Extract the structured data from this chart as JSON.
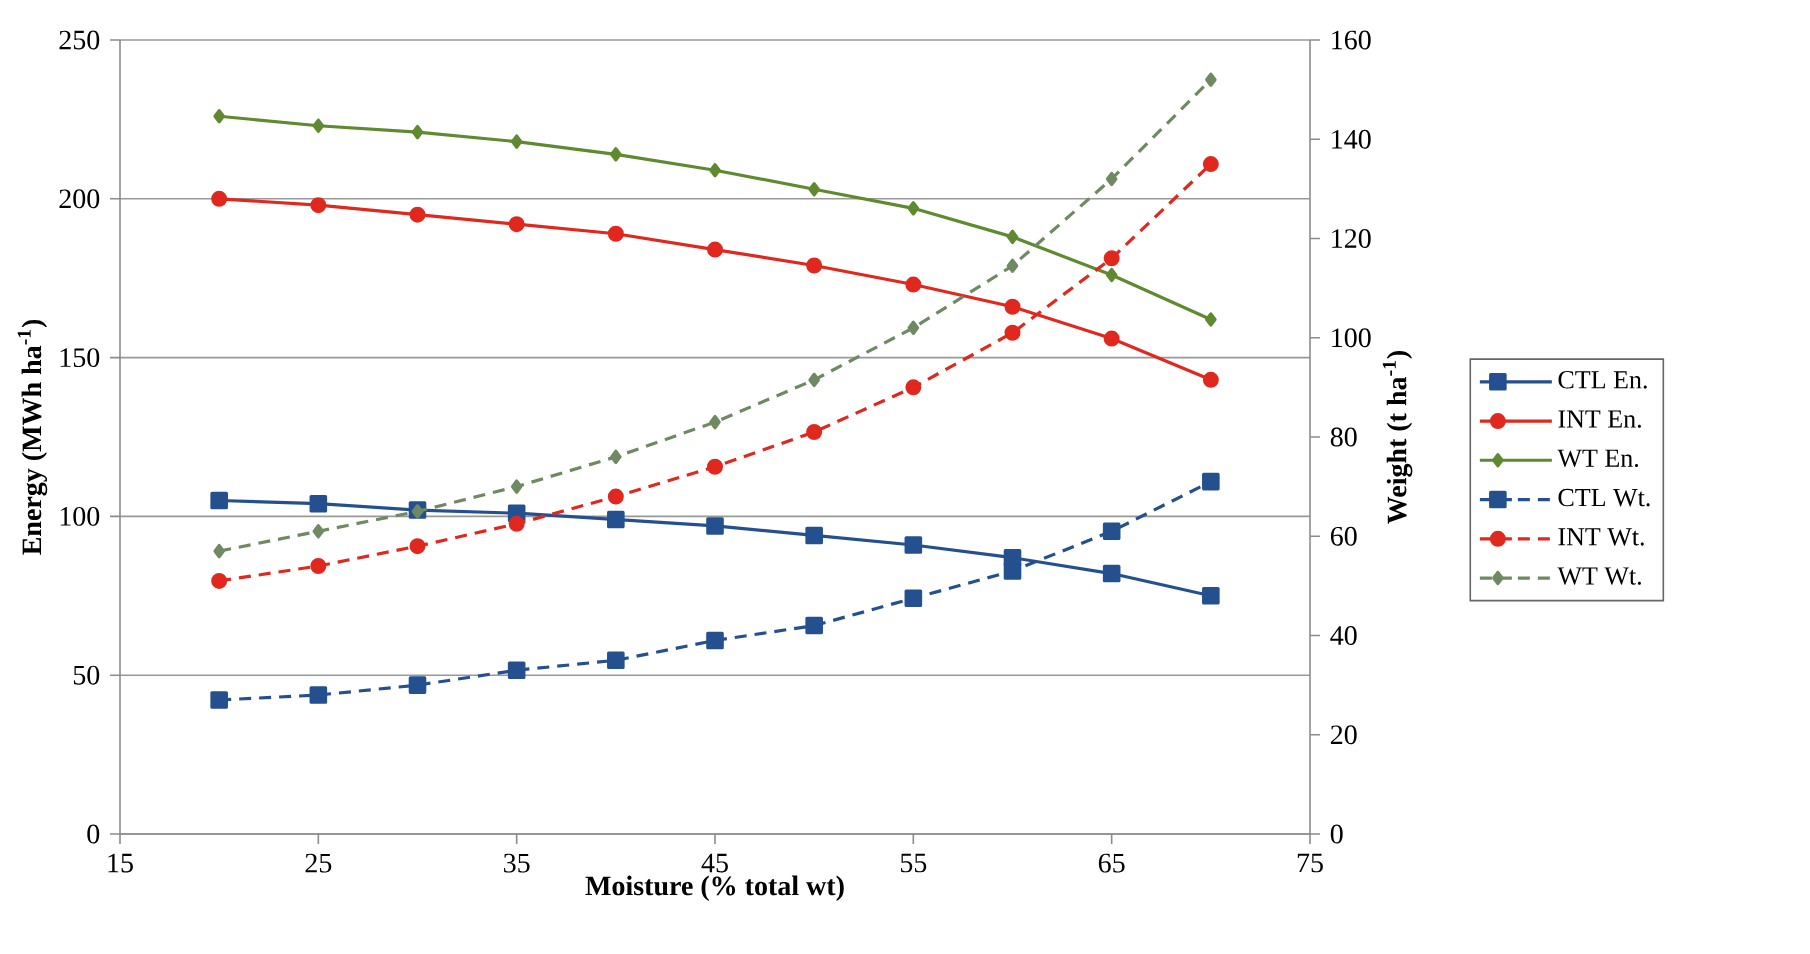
{
  "chart_data": {
    "type": "line",
    "xlabel": "Moisture (% total wt)",
    "ylabel": "Energy (MWh ha$^{-1}$)",
    "y2label": "Weight  (t ha$^{-1}$)",
    "x": [
      20,
      25,
      30,
      35,
      40,
      45,
      50,
      55,
      60,
      65,
      70
    ],
    "xlim": [
      15,
      75
    ],
    "xticks": [
      15,
      25,
      35,
      45,
      55,
      65,
      75
    ],
    "ylim": [
      0,
      250
    ],
    "yticks": [
      0,
      50,
      100,
      150,
      200,
      250
    ],
    "y2lim": [
      0,
      160
    ],
    "y2ticks": [
      0,
      20,
      40,
      60,
      80,
      100,
      120,
      140,
      160
    ],
    "grid": "y",
    "legend": "right",
    "series": [
      {
        "name": "CTL En.",
        "color": "#25508f",
        "marker": "square",
        "line_style": "solid",
        "values": [
          105,
          104,
          102,
          101,
          99,
          97,
          94,
          91,
          87,
          82,
          75
        ]
      },
      {
        "name": "INT En.",
        "color": "#e0281e",
        "marker": "circle",
        "line_style": "solid",
        "values": [
          200,
          198,
          195,
          192,
          189,
          184,
          179,
          173,
          166,
          156,
          143
        ]
      },
      {
        "name": "WT En.",
        "color": "#5f8a30",
        "marker": "diamond",
        "line_style": "solid",
        "values": [
          226,
          223,
          221,
          218,
          214,
          209,
          203,
          197,
          188,
          176,
          162
        ]
      },
      {
        "name": "CTL Wt.",
        "color": "#25508f",
        "marker": "square",
        "line_style": "dashed",
        "axis": "y2",
        "values": [
          27,
          28,
          30,
          33,
          35,
          39,
          42,
          47.5,
          53,
          61,
          71
        ]
      },
      {
        "name": "INT Wt.",
        "color": "#e0281e",
        "marker": "circle",
        "line_style": "dashed",
        "axis": "y2",
        "values": [
          51,
          54,
          58,
          62.5,
          68,
          74,
          81,
          90,
          101,
          116,
          135
        ]
      },
      {
        "name": "WT Wt.",
        "color": "#6f8a62",
        "marker": "diamond",
        "line_style": "dashed",
        "axis": "y2",
        "values": [
          57,
          61,
          65,
          70,
          76,
          83,
          91.5,
          102,
          114.5,
          132,
          152
        ]
      }
    ]
  }
}
